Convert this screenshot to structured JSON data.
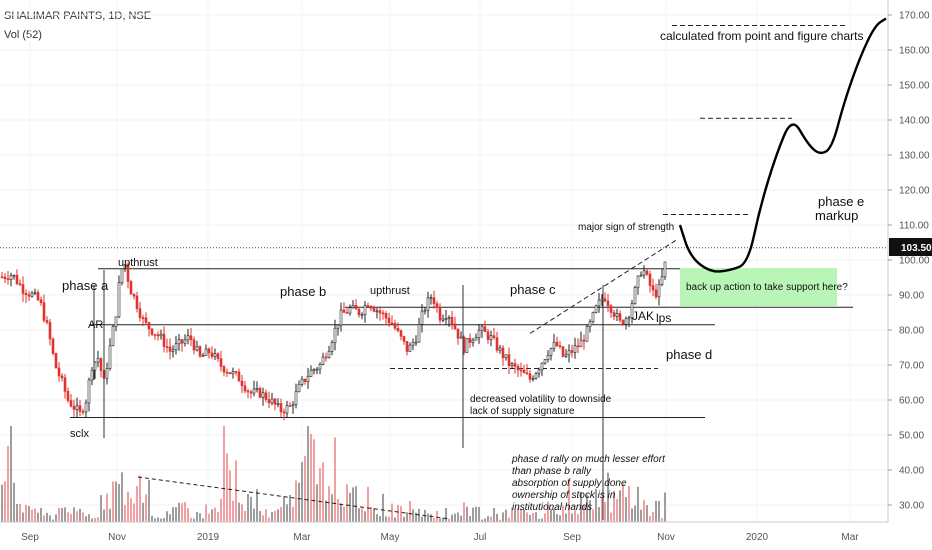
{
  "header": {
    "symbol": "SHALIMAR PAINTS, 1D, NSE",
    "volume": "Vol (52)"
  },
  "chart_data": {
    "type": "candlestick",
    "title": "SHALIMAR PAINTS, 1D, NSE",
    "y_ticks": [
      "170.00",
      "160.00",
      "150.00",
      "140.00",
      "130.00",
      "120.00",
      "110.00",
      "100.00",
      "90.00",
      "80.00",
      "70.00",
      "60.00",
      "50.00",
      "40.00",
      "30.00"
    ],
    "x_ticks": [
      "Sep",
      "Nov",
      "2019",
      "Mar",
      "May",
      "Jul",
      "Sep",
      "Nov",
      "2020",
      "Mar"
    ],
    "ylim": [
      25,
      173
    ],
    "last_price": "103.50",
    "colors": {
      "up": "#222222",
      "down": "#e0322e",
      "vol_up": "#9e9e9e",
      "vol_down": "#f0a0a0",
      "support": "#b9f5b6"
    },
    "price_path": [
      [
        0,
        95
      ],
      [
        12,
        96
      ],
      [
        22,
        92
      ],
      [
        32,
        90
      ],
      [
        40,
        88
      ],
      [
        48,
        80
      ],
      [
        55,
        70
      ],
      [
        62,
        65
      ],
      [
        68,
        60
      ],
      [
        74,
        58
      ],
      [
        80,
        56
      ],
      [
        86,
        60
      ],
      [
        92,
        70
      ],
      [
        98,
        72
      ],
      [
        104,
        65
      ],
      [
        110,
        75
      ],
      [
        116,
        85
      ],
      [
        120,
        95
      ],
      [
        124,
        100
      ],
      [
        130,
        92
      ],
      [
        136,
        88
      ],
      [
        144,
        82
      ],
      [
        152,
        80
      ],
      [
        160,
        78
      ],
      [
        170,
        74
      ],
      [
        180,
        76
      ],
      [
        190,
        78
      ],
      [
        200,
        72
      ],
      [
        210,
        74
      ],
      [
        220,
        70
      ],
      [
        230,
        68
      ],
      [
        240,
        66
      ],
      [
        250,
        62
      ],
      [
        260,
        62
      ],
      [
        270,
        60
      ],
      [
        280,
        57
      ],
      [
        290,
        58
      ],
      [
        300,
        64
      ],
      [
        310,
        68
      ],
      [
        320,
        70
      ],
      [
        330,
        76
      ],
      [
        340,
        84
      ],
      [
        350,
        86
      ],
      [
        360,
        85
      ],
      [
        368,
        88
      ],
      [
        376,
        86
      ],
      [
        384,
        84
      ],
      [
        392,
        82
      ],
      [
        400,
        78
      ],
      [
        408,
        74
      ],
      [
        416,
        78
      ],
      [
        424,
        86
      ],
      [
        432,
        90
      ],
      [
        440,
        84
      ],
      [
        448,
        85
      ],
      [
        456,
        80
      ],
      [
        464,
        75
      ],
      [
        472,
        78
      ],
      [
        480,
        80
      ],
      [
        490,
        78
      ],
      [
        500,
        74
      ],
      [
        510,
        70
      ],
      [
        520,
        68
      ],
      [
        530,
        66
      ],
      [
        540,
        70
      ],
      [
        548,
        74
      ],
      [
        556,
        76
      ],
      [
        564,
        72
      ],
      [
        572,
        74
      ],
      [
        580,
        76
      ],
      [
        588,
        80
      ],
      [
        596,
        86
      ],
      [
        604,
        90
      ],
      [
        612,
        86
      ],
      [
        620,
        82
      ],
      [
        628,
        84
      ],
      [
        636,
        92
      ],
      [
        642,
        98
      ],
      [
        648,
        94
      ],
      [
        654,
        90
      ],
      [
        660,
        92
      ],
      [
        666,
        100
      ]
    ],
    "volume_path": [
      [
        18,
        8
      ],
      [
        38,
        4
      ],
      [
        62,
        6
      ],
      [
        82,
        4
      ],
      [
        100,
        12
      ],
      [
        110,
        20
      ],
      [
        122,
        26
      ],
      [
        150,
        5
      ],
      [
        170,
        8
      ],
      [
        190,
        5
      ],
      [
        210,
        10
      ],
      [
        220,
        30
      ],
      [
        240,
        14
      ],
      [
        260,
        6
      ],
      [
        280,
        12
      ],
      [
        294,
        32
      ],
      [
        306,
        36
      ],
      [
        322,
        24
      ],
      [
        342,
        16
      ],
      [
        362,
        10
      ],
      [
        382,
        8
      ],
      [
        402,
        6
      ],
      [
        422,
        5
      ],
      [
        442,
        4
      ],
      [
        462,
        8
      ],
      [
        480,
        4
      ],
      [
        500,
        6
      ],
      [
        522,
        5
      ],
      [
        544,
        9
      ],
      [
        566,
        12
      ],
      [
        590,
        14
      ],
      [
        612,
        16
      ],
      [
        630,
        10
      ],
      [
        650,
        6
      ],
      [
        664,
        31
      ]
    ],
    "projection_path": [
      [
        680,
        110
      ],
      [
        690,
        101
      ],
      [
        710,
        96.5
      ],
      [
        730,
        97
      ],
      [
        748,
        99
      ],
      [
        760,
        115
      ],
      [
        776,
        130
      ],
      [
        792,
        141
      ],
      [
        808,
        133
      ],
      [
        820,
        130
      ],
      [
        832,
        132
      ],
      [
        844,
        145
      ],
      [
        860,
        158
      ],
      [
        875,
        167
      ],
      [
        886,
        169
      ]
    ],
    "lines": [
      {
        "name": "upthrust-resistance",
        "x1": 98,
        "x2": 800,
        "y": 97.5,
        "style": "solid"
      },
      {
        "name": "ice-line",
        "x1": 345,
        "x2": 853,
        "y": 86.5,
        "style": "solid"
      },
      {
        "name": "ar-line",
        "x1": 90,
        "x2": 715,
        "y": 81.5,
        "style": "solid"
      },
      {
        "name": "creek-line",
        "x1": 390,
        "x2": 658,
        "y": 69,
        "style": "dashed"
      },
      {
        "name": "sc-support",
        "x1": 70,
        "x2": 705,
        "y": 55,
        "style": "solid"
      },
      {
        "name": "last-price-line",
        "x1": 0,
        "x2": 888,
        "y": 103.5,
        "style": "dotted"
      },
      {
        "name": "target-170",
        "x1": 672,
        "x2": 848,
        "y": 167,
        "style": "dashed"
      },
      {
        "name": "target-140",
        "x1": 700,
        "x2": 792,
        "y": 140.5,
        "style": "dashed"
      },
      {
        "name": "target-113",
        "x1": 663,
        "x2": 748,
        "y": 113,
        "style": "dashed"
      },
      {
        "name": "trend-channel",
        "x1": 530,
        "x2": 678,
        "y1": 79,
        "y2": 106,
        "style": "dashed"
      }
    ],
    "annotations": {
      "phase_a": "phase a",
      "phase_b": "phase b",
      "phase_c": "phase c",
      "phase_d": "phase d",
      "phase_e_1": "phase e",
      "phase_e_2": "markup",
      "upthrust_1": "upthrust",
      "upthrust_2": "upthrust",
      "ar": "AR",
      "sclx": "sclx",
      "jak": "JAK",
      "lps": "lps",
      "major_sos": "major sign of strength",
      "pnf": "calculated from point and figure charts",
      "support_box": "back up action  to take support here?",
      "volatility_1": "decreased volatility to downside",
      "volatility_2": "lack of supply signature",
      "note_1": "phase d rally on much lesser effort",
      "note_2": "than phase b rally",
      "note_3": "absorption of supply done",
      "note_4": "ownership of stock is in",
      "note_5": "institutional hands"
    }
  }
}
